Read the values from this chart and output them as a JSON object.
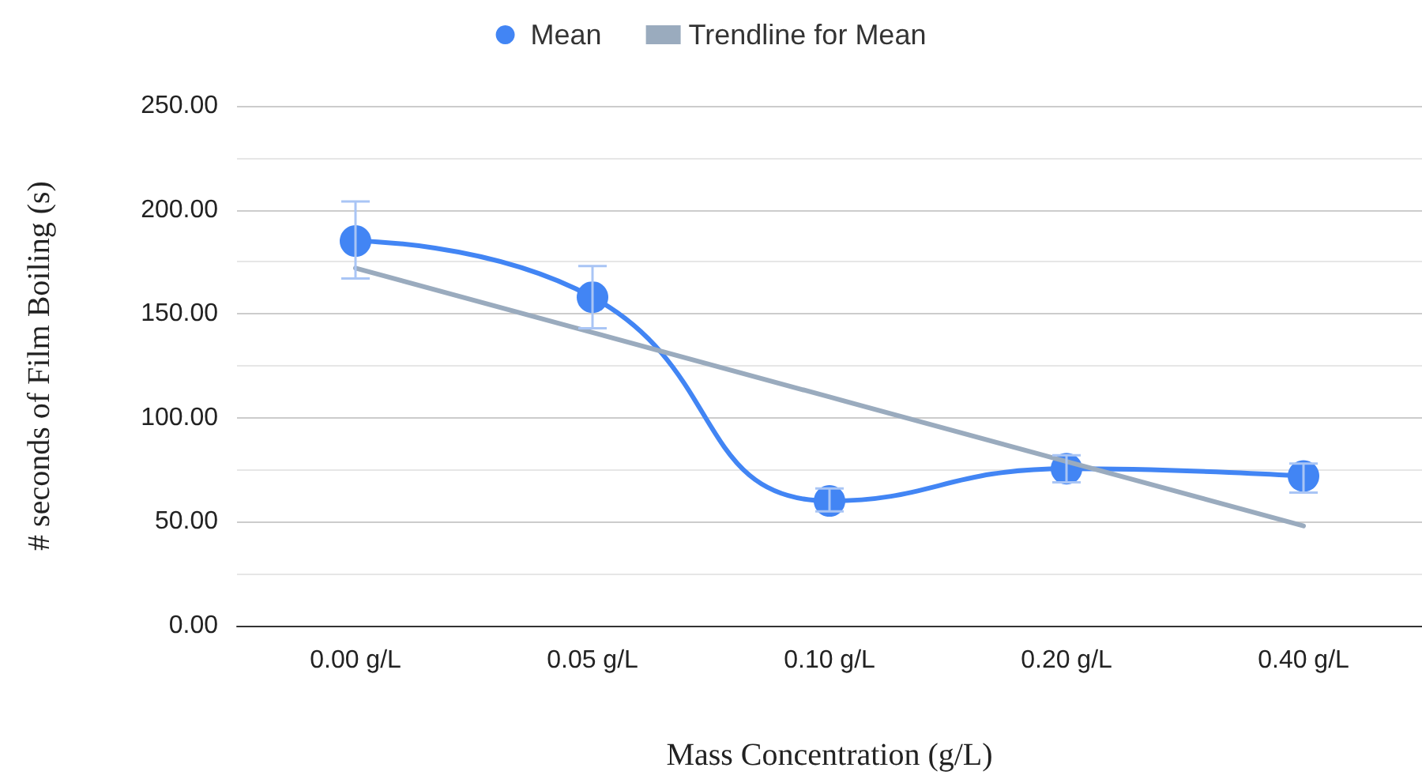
{
  "chart_data": {
    "type": "line",
    "xlabel": "Mass Concentration (g/L)",
    "ylabel": "# seconds of Film Boiling (s)",
    "categories": [
      "0.00 g/L",
      "0.05 g/L",
      "0.10 g/L",
      "0.20 g/L",
      "0.40 g/L"
    ],
    "series": [
      {
        "name": "Mean",
        "color": "#4285f4",
        "values": [
          185,
          158,
          60,
          75.5,
          72
        ],
        "errors": [
          [
            167,
            204
          ],
          [
            143,
            173
          ],
          [
            55,
            66
          ],
          [
            69,
            82
          ],
          [
            64,
            78
          ]
        ],
        "marker": "circle"
      },
      {
        "name": "Trendline for Mean",
        "type": "line",
        "color": "#9aabbe",
        "values": [
          172,
          141,
          110,
          79,
          48
        ],
        "marker": "none"
      }
    ],
    "ylim": [
      0,
      250
    ],
    "yticks": [
      {
        "value": 0,
        "label": "0.00"
      },
      {
        "value": 50,
        "label": "50.00"
      },
      {
        "value": 100,
        "label": "100.00"
      },
      {
        "value": 150,
        "label": "150.00"
      },
      {
        "value": 200,
        "label": "200.00"
      },
      {
        "value": 250,
        "label": "250.00"
      }
    ],
    "grid": "y",
    "legend": "top"
  }
}
